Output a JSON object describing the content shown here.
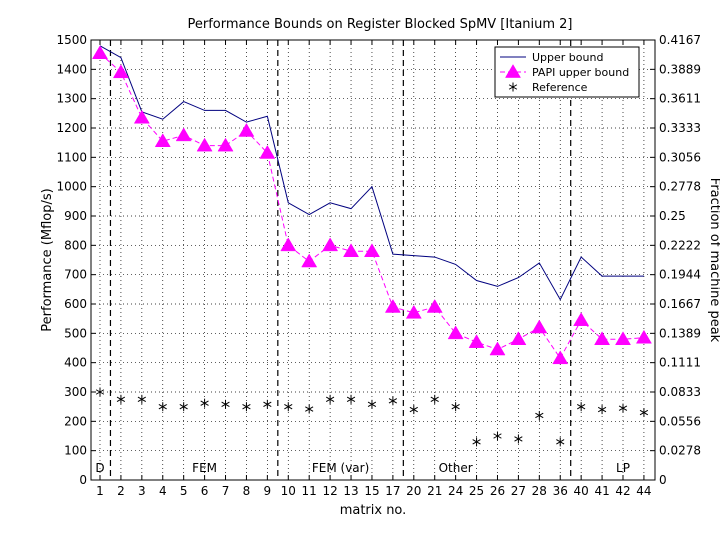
{
  "chart_data": {
    "type": "line",
    "title": "Performance Bounds on Register Blocked SpMV [Itanium 2]",
    "xlabel": "matrix no.",
    "ylabel": "Performance (Mflop/s)",
    "y2label": "Fraction of machine peak",
    "categories": [
      "1",
      "2",
      "3",
      "4",
      "5",
      "6",
      "7",
      "8",
      "9",
      "10",
      "11",
      "12",
      "13",
      "15",
      "17",
      "20",
      "21",
      "24",
      "25",
      "26",
      "27",
      "28",
      "36",
      "40",
      "41",
      "42",
      "44"
    ],
    "ylim": [
      0,
      1500
    ],
    "yticks": [
      0,
      100,
      200,
      300,
      400,
      500,
      600,
      700,
      800,
      900,
      1000,
      1100,
      1200,
      1300,
      1400,
      1500
    ],
    "y2ticks": [
      "0",
      "0.0278",
      "0.0556",
      "0.0833",
      "0.1111",
      "0.1389",
      "0.1667",
      "0.1944",
      "0.2222",
      "0.25",
      "0.2778",
      "0.3056",
      "0.3333",
      "0.3611",
      "0.3889",
      "0.4167"
    ],
    "grid": true,
    "legend_position": "top-right",
    "series": [
      {
        "name": "Upper bound",
        "color": "#00007f",
        "values": [
          1480,
          1440,
          1255,
          1230,
          1290,
          1260,
          1260,
          1220,
          1240,
          945,
          905,
          945,
          925,
          1000,
          770,
          765,
          760,
          735,
          680,
          660,
          690,
          740,
          615,
          760,
          695,
          695,
          695
        ]
      },
      {
        "name": "PAPI upper bound",
        "color": "#ff00ff",
        "values": [
          1455,
          1390,
          1235,
          1155,
          1175,
          1140,
          1140,
          1190,
          1115,
          800,
          745,
          800,
          780,
          780,
          590,
          570,
          590,
          500,
          470,
          445,
          480,
          520,
          415,
          545,
          480,
          480,
          485
        ]
      },
      {
        "name": "Reference",
        "color": "#000000",
        "values": [
          300,
          275,
          275,
          250,
          250,
          262,
          258,
          250,
          258,
          250,
          242,
          275,
          275,
          258,
          270,
          240,
          275,
          250,
          130,
          150,
          140,
          220,
          130,
          250,
          240,
          245,
          230
        ]
      }
    ],
    "group_separators_after": [
      "1",
      "9",
      "17",
      "36"
    ],
    "group_labels": [
      {
        "text": "D",
        "at": "1"
      },
      {
        "text": "FEM",
        "at": "6"
      },
      {
        "text": "FEM (var)",
        "at": "12.5"
      },
      {
        "text": "Other",
        "at": "24"
      },
      {
        "text": "LP",
        "at": "42"
      }
    ]
  }
}
